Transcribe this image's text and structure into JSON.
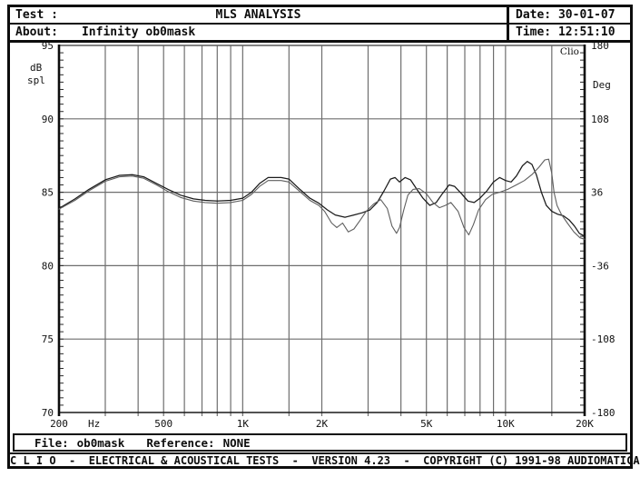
{
  "header": {
    "test_label": "Test :",
    "test_value": "",
    "title": "MLS ANALYSIS",
    "about_label": "About:",
    "about_value": "Infinity ob0mask",
    "date_label": "Date:",
    "date_value": "30-01-07",
    "time_label": "Time:",
    "time_value": "12:51:10"
  },
  "plot": {
    "watermark": "Clio",
    "y_left": {
      "title_line1": "dB",
      "title_line2": "spl",
      "ticks": [
        95,
        90,
        85,
        80,
        75,
        70
      ]
    },
    "y_right": {
      "title": "Deg",
      "ticks": [
        180,
        108,
        36,
        -36,
        -108,
        -180
      ]
    },
    "x": {
      "unit": "Hz",
      "labels": [
        {
          "f": 200,
          "text": "200"
        },
        {
          "f": 500,
          "text": "500"
        },
        {
          "f": 1000,
          "text": "1K"
        },
        {
          "f": 2000,
          "text": "2K"
        },
        {
          "f": 5000,
          "text": "5K"
        },
        {
          "f": 10000,
          "text": "10K"
        },
        {
          "f": 20000,
          "text": "20K"
        }
      ],
      "gridlines": [
        300,
        400,
        500,
        600,
        700,
        800,
        900,
        1000,
        1500,
        2000,
        3000,
        4000,
        5000,
        6000,
        7000,
        8000,
        9000,
        10000,
        15000
      ]
    },
    "colors": {
      "grid": "#6e6e6e",
      "axis": "#0d0d0d",
      "tick": "#2a2a2a"
    }
  },
  "chart_data": {
    "type": "line",
    "title": "MLS ANALYSIS - Infinity ob0mask",
    "xlabel": "Hz",
    "ylabel_left": "dB spl",
    "ylabel_right": "Deg",
    "x_scale": "log",
    "xlim": [
      200,
      20000
    ],
    "ylim_left": [
      70,
      95
    ],
    "ylim_right": [
      -180,
      180
    ],
    "y_gridlines_db": [
      90,
      85,
      80,
      75
    ],
    "grid": true,
    "legend": "none",
    "series": [
      {
        "name": "response-1",
        "color": "#1b1b1b",
        "width": 1.25,
        "points": [
          [
            200,
            83.9
          ],
          [
            230,
            84.55
          ],
          [
            260,
            85.2
          ],
          [
            300,
            85.85
          ],
          [
            340,
            86.15
          ],
          [
            380,
            86.2
          ],
          [
            420,
            86.05
          ],
          [
            470,
            85.6
          ],
          [
            520,
            85.2
          ],
          [
            580,
            84.8
          ],
          [
            650,
            84.55
          ],
          [
            720,
            84.45
          ],
          [
            800,
            84.4
          ],
          [
            900,
            84.45
          ],
          [
            1000,
            84.6
          ],
          [
            1080,
            85.0
          ],
          [
            1160,
            85.6
          ],
          [
            1250,
            86.0
          ],
          [
            1400,
            86.0
          ],
          [
            1500,
            85.9
          ],
          [
            1650,
            85.2
          ],
          [
            1800,
            84.6
          ],
          [
            1950,
            84.25
          ],
          [
            2100,
            83.8
          ],
          [
            2250,
            83.45
          ],
          [
            2450,
            83.3
          ],
          [
            2650,
            83.45
          ],
          [
            2850,
            83.6
          ],
          [
            3050,
            83.8
          ],
          [
            3250,
            84.3
          ],
          [
            3450,
            85.1
          ],
          [
            3650,
            85.9
          ],
          [
            3800,
            86.0
          ],
          [
            3950,
            85.7
          ],
          [
            4150,
            86.0
          ],
          [
            4350,
            85.85
          ],
          [
            4600,
            85.2
          ],
          [
            4850,
            84.6
          ],
          [
            5150,
            84.1
          ],
          [
            5450,
            84.3
          ],
          [
            5750,
            84.9
          ],
          [
            6100,
            85.5
          ],
          [
            6400,
            85.4
          ],
          [
            6800,
            84.9
          ],
          [
            7200,
            84.4
          ],
          [
            7600,
            84.3
          ],
          [
            8000,
            84.6
          ],
          [
            8500,
            85.1
          ],
          [
            9000,
            85.7
          ],
          [
            9500,
            86.0
          ],
          [
            10000,
            85.8
          ],
          [
            10500,
            85.7
          ],
          [
            11000,
            86.1
          ],
          [
            11600,
            86.8
          ],
          [
            12100,
            87.1
          ],
          [
            12600,
            86.9
          ],
          [
            13100,
            86.2
          ],
          [
            13700,
            85.0
          ],
          [
            14300,
            84.1
          ],
          [
            15000,
            83.7
          ],
          [
            15800,
            83.5
          ],
          [
            16600,
            83.4
          ],
          [
            17500,
            83.1
          ],
          [
            18300,
            82.7
          ],
          [
            19100,
            82.2
          ],
          [
            20000,
            82.0
          ]
        ]
      },
      {
        "name": "response-2",
        "color": "#5f5f5f",
        "width": 1.1,
        "points": [
          [
            200,
            83.85
          ],
          [
            230,
            84.45
          ],
          [
            260,
            85.1
          ],
          [
            300,
            85.75
          ],
          [
            340,
            86.05
          ],
          [
            380,
            86.1
          ],
          [
            420,
            85.95
          ],
          [
            470,
            85.5
          ],
          [
            520,
            85.05
          ],
          [
            580,
            84.65
          ],
          [
            650,
            84.4
          ],
          [
            720,
            84.3
          ],
          [
            800,
            84.25
          ],
          [
            900,
            84.3
          ],
          [
            1000,
            84.45
          ],
          [
            1080,
            84.85
          ],
          [
            1160,
            85.4
          ],
          [
            1250,
            85.8
          ],
          [
            1400,
            85.8
          ],
          [
            1500,
            85.7
          ],
          [
            1650,
            85.05
          ],
          [
            1800,
            84.45
          ],
          [
            1950,
            84.1
          ],
          [
            2050,
            83.7
          ],
          [
            2180,
            82.9
          ],
          [
            2280,
            82.6
          ],
          [
            2400,
            82.9
          ],
          [
            2520,
            82.3
          ],
          [
            2650,
            82.5
          ],
          [
            2800,
            83.1
          ],
          [
            2950,
            83.7
          ],
          [
            3150,
            84.2
          ],
          [
            3350,
            84.5
          ],
          [
            3550,
            83.9
          ],
          [
            3700,
            82.7
          ],
          [
            3850,
            82.2
          ],
          [
            3950,
            82.6
          ],
          [
            4100,
            83.8
          ],
          [
            4250,
            84.8
          ],
          [
            4450,
            85.2
          ],
          [
            4700,
            85.25
          ],
          [
            5000,
            84.9
          ],
          [
            5300,
            84.3
          ],
          [
            5600,
            83.95
          ],
          [
            5900,
            84.1
          ],
          [
            6200,
            84.3
          ],
          [
            6600,
            83.7
          ],
          [
            6950,
            82.6
          ],
          [
            7250,
            82.1
          ],
          [
            7550,
            82.8
          ],
          [
            7900,
            83.8
          ],
          [
            8400,
            84.5
          ],
          [
            8900,
            84.85
          ],
          [
            9500,
            85.0
          ],
          [
            10200,
            85.2
          ],
          [
            11000,
            85.5
          ],
          [
            11800,
            85.8
          ],
          [
            12600,
            86.2
          ],
          [
            13400,
            86.7
          ],
          [
            14100,
            87.2
          ],
          [
            14600,
            87.25
          ],
          [
            15000,
            86.3
          ],
          [
            15300,
            85.0
          ],
          [
            15700,
            84.1
          ],
          [
            16300,
            83.5
          ],
          [
            17200,
            82.9
          ],
          [
            18200,
            82.3
          ],
          [
            19200,
            81.9
          ],
          [
            20000,
            81.8
          ]
        ]
      }
    ]
  },
  "file_bar": {
    "file_label": "File:",
    "file_value": "ob0mask",
    "reference_label": "Reference:",
    "reference_value": "NONE"
  },
  "footer": {
    "text": "C L I O  -  ELECTRICAL & ACOUSTICAL TESTS  -  VERSION 4.23  -  COPYRIGHT (C) 1991-98 AUDIOMATICA"
  }
}
